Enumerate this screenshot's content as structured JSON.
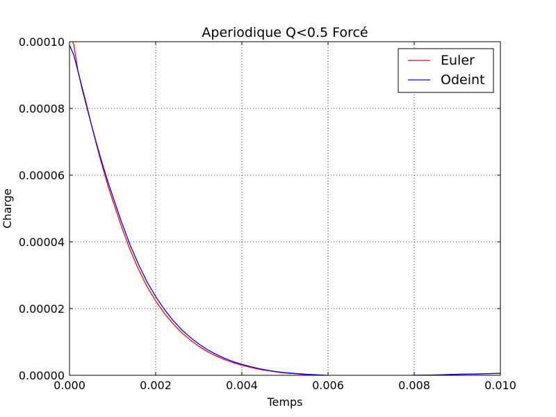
{
  "chart_data": {
    "type": "line",
    "title": "Aperiodique Q<0.5 Forcé",
    "xlabel": "Temps",
    "ylabel": "Charge",
    "xlim": [
      0.0,
      0.01
    ],
    "ylim": [
      0.0,
      0.0001
    ],
    "x_ticks": [
      0.0,
      0.002,
      0.004,
      0.006,
      0.008,
      0.01
    ],
    "x_tick_labels": [
      "0.000",
      "0.002",
      "0.004",
      "0.006",
      "0.008",
      "0.010"
    ],
    "y_ticks": [
      0.0,
      2e-05,
      4e-05,
      6e-05,
      8e-05,
      0.0001
    ],
    "y_tick_labels": [
      "0.00000",
      "0.00002",
      "0.00004",
      "0.00006",
      "0.00008",
      "0.00010"
    ],
    "grid": true,
    "grid_style": "dotted",
    "legend_position": "top-right",
    "series": [
      {
        "name": "Euler",
        "color": "#ff0000",
        "x": [
          0.0,
          0.0001,
          0.0002,
          0.0003,
          0.0004,
          0.0005,
          0.0006,
          0.0007,
          0.0008,
          0.0009,
          0.001,
          0.0012,
          0.0014,
          0.0016,
          0.0018,
          0.002,
          0.0022,
          0.0024,
          0.0026,
          0.0028,
          0.003,
          0.0032,
          0.0034,
          0.0036,
          0.0038,
          0.004,
          0.0042,
          0.0044,
          0.0046,
          0.0048,
          0.005,
          0.0055,
          0.006,
          0.0065,
          0.007,
          0.0075,
          0.008,
          0.0085,
          0.009,
          0.0095,
          0.01
        ],
        "values": [
          0.000103,
          9.9e-05,
          9.1e-05,
          8.6e-05,
          8.1e-05,
          7.55e-05,
          7.05e-05,
          6.55e-05,
          6.1e-05,
          5.65e-05,
          5.25e-05,
          4.48e-05,
          3.78e-05,
          3.18e-05,
          2.66e-05,
          2.23e-05,
          1.86e-05,
          1.55e-05,
          1.28e-05,
          1.06e-05,
          8.7e-06,
          7.1e-06,
          5.8e-06,
          4.7e-06,
          3.8e-06,
          3e-06,
          2.4e-06,
          1.8e-06,
          1.4e-06,
          1e-06,
          7e-07,
          2e-07,
          -1e-07,
          -2e-07,
          -2e-07,
          -1e-07,
          0.0,
          1e-07,
          3e-07,
          4e-07,
          6e-07
        ]
      },
      {
        "name": "Odeint",
        "color": "#0000ff",
        "x": [
          0.0,
          0.0001,
          0.0002,
          0.0003,
          0.0004,
          0.0005,
          0.0006,
          0.0007,
          0.0008,
          0.0009,
          0.001,
          0.0012,
          0.0014,
          0.0016,
          0.0018,
          0.002,
          0.0022,
          0.0024,
          0.0026,
          0.0028,
          0.003,
          0.0032,
          0.0034,
          0.0036,
          0.0038,
          0.004,
          0.0042,
          0.0044,
          0.0046,
          0.0048,
          0.005,
          0.0055,
          0.006,
          0.0065,
          0.007,
          0.0075,
          0.008,
          0.0085,
          0.009,
          0.0095,
          0.01
        ],
        "values": [
          9.9e-05,
          9.6e-05,
          9.1e-05,
          8.55e-05,
          8.05e-05,
          7.55e-05,
          7.08e-05,
          6.62e-05,
          6.18e-05,
          5.77e-05,
          5.38e-05,
          4.62e-05,
          3.93e-05,
          3.33e-05,
          2.8e-05,
          2.36e-05,
          1.98e-05,
          1.65e-05,
          1.37e-05,
          1.14e-05,
          9.4e-06,
          7.7e-06,
          6.3e-06,
          5.1e-06,
          4.1e-06,
          3.3e-06,
          2.6e-06,
          2e-06,
          1.5e-06,
          1.1e-06,
          8e-07,
          3e-07,
          0.0,
          -1e-07,
          -1e-07,
          -1e-07,
          0.0,
          1e-07,
          3e-07,
          4e-07,
          6e-07
        ]
      }
    ]
  }
}
